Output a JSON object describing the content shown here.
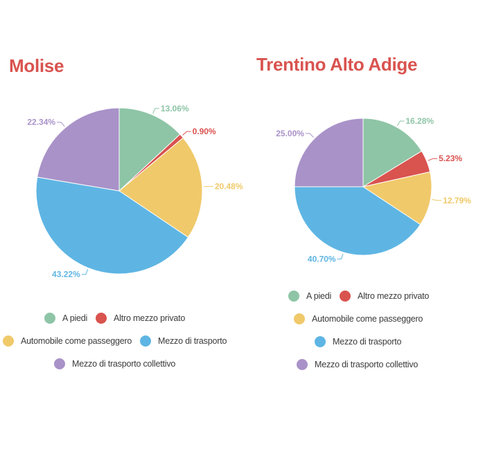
{
  "chart_data": [
    {
      "type": "pie",
      "title": "Molise",
      "title_color": "#d9534f",
      "categories": [
        "A piedi",
        "Altro mezzo privato",
        "Automobile come passeggero",
        "Mezzo di trasporto",
        "Mezzo di trasporto collettivo"
      ],
      "values": [
        13.06,
        0.9,
        20.48,
        43.22,
        22.34
      ],
      "value_labels": [
        "13.06%",
        "0.90%",
        "20.48%",
        "43.22%",
        "22.34%"
      ],
      "colors": [
        "#8ec5a6",
        "#d9534f",
        "#f0c96a",
        "#5eb5e3",
        "#a992c8"
      ],
      "legend_position": "bottom"
    },
    {
      "type": "pie",
      "title": "Trentino Alto Adige",
      "title_color": "#d9534f",
      "categories": [
        "A piedi",
        "Altro mezzo privato",
        "Automobile come passeggero",
        "Mezzo di trasporto",
        "Mezzo di trasporto collettivo"
      ],
      "values": [
        16.28,
        5.23,
        12.79,
        40.7,
        25.0
      ],
      "value_labels": [
        "16.28%",
        "5.23%",
        "12.79%",
        "40.70%",
        "25.00%"
      ],
      "colors": [
        "#8ec5a6",
        "#d9534f",
        "#f0c96a",
        "#5eb5e3",
        "#a992c8"
      ],
      "legend_position": "bottom"
    }
  ]
}
